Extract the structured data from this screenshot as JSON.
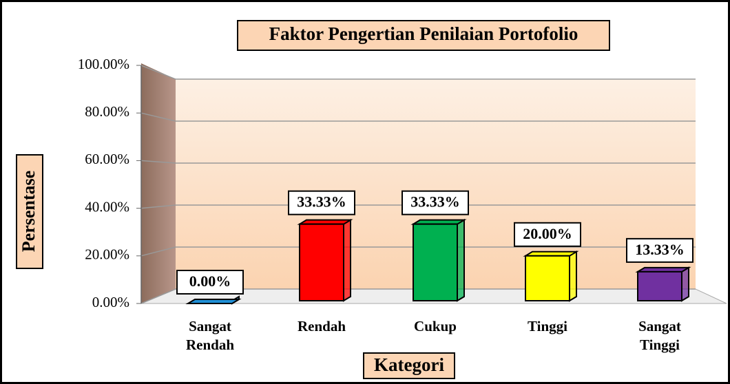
{
  "chart_data": {
    "type": "bar3d",
    "title": "Faktor Pengertian Penilaian Portofolio",
    "y_label": "Persentase",
    "x_label": "Kategori",
    "categories": [
      "Sangat Rendah",
      "Rendah",
      "Cukup",
      "Tinggi",
      "Sangat Tinggi"
    ],
    "values": [
      0,
      33.33,
      33.33,
      20,
      13.33
    ],
    "value_labels": [
      "0.00%",
      "33.33%",
      "33.33%",
      "20.00%",
      "13.33%"
    ],
    "colors": [
      "#1f8fd6",
      "#ff0000",
      "#00b050",
      "#ffff00",
      "#7030a0"
    ],
    "ylim": [
      0,
      100
    ],
    "yticks": [
      {
        "value": 0,
        "label": "0.00%"
      },
      {
        "value": 20,
        "label": "20.00%"
      },
      {
        "value": 40,
        "label": "40.00%"
      },
      {
        "value": 60,
        "label": "60.00%"
      },
      {
        "value": 80,
        "label": "80.00%"
      },
      {
        "value": 100,
        "label": "100.00%"
      }
    ],
    "grid": true
  }
}
